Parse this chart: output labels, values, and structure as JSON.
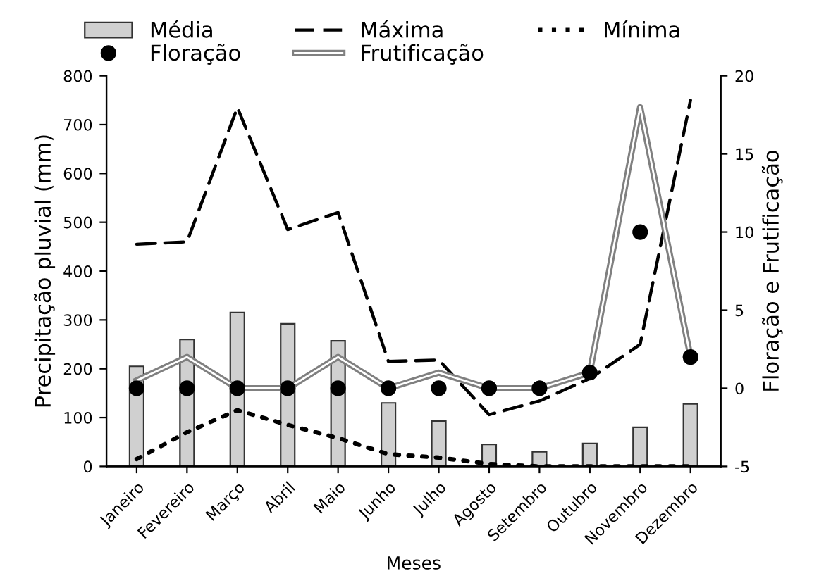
{
  "chart_data": {
    "type": "bar",
    "xlabel": "Meses",
    "ylabel": "Precipitação pluvial (mm)",
    "y2label": "Floração e Frutificação",
    "categories": [
      "Janeiro",
      "Fevereiro",
      "Março",
      "Abril",
      "Maio",
      "Junho",
      "Julho",
      "Agosto",
      "Setembro",
      "Outubro",
      "Novembro",
      "Dezembro"
    ],
    "series": [
      {
        "name": "Média",
        "color": "#d0d0d0",
        "values": [
          205,
          260,
          315,
          292,
          257,
          130,
          93,
          45,
          30,
          47,
          80,
          128
        ]
      },
      {
        "name": "Máxima",
        "type": "line",
        "color": "#000000",
        "line_style": "dashed",
        "values": [
          455,
          460,
          735,
          485,
          520,
          215,
          218,
          106,
          134,
          180,
          250,
          750
        ]
      },
      {
        "name": "Mínima",
        "type": "line",
        "color": "#000000",
        "line_style": "dotted",
        "values": [
          15,
          70,
          115,
          85,
          58,
          25,
          18,
          5,
          0,
          0,
          0,
          0
        ]
      },
      {
        "name": "Floração",
        "type": "scatter",
        "axis": "y2",
        "color": "#000000",
        "marker": "circle",
        "values": [
          0,
          0,
          0,
          0,
          0,
          0,
          0,
          0,
          0,
          1,
          10,
          2
        ]
      },
      {
        "name": "Frutificação",
        "type": "line",
        "axis": "y2",
        "color": "#808080",
        "line_style": "solid",
        "values": [
          0.5,
          2,
          0,
          0,
          2,
          0,
          1,
          0,
          0,
          1,
          18,
          2
        ]
      }
    ],
    "ylim": [
      0,
      800
    ],
    "yticks": [
      0,
      100,
      200,
      300,
      400,
      500,
      600,
      700,
      800
    ],
    "y2lim": [
      -5,
      20
    ],
    "y2ticks": [
      -5,
      0,
      5,
      10,
      15,
      20
    ],
    "legend": "top",
    "grid": false
  }
}
